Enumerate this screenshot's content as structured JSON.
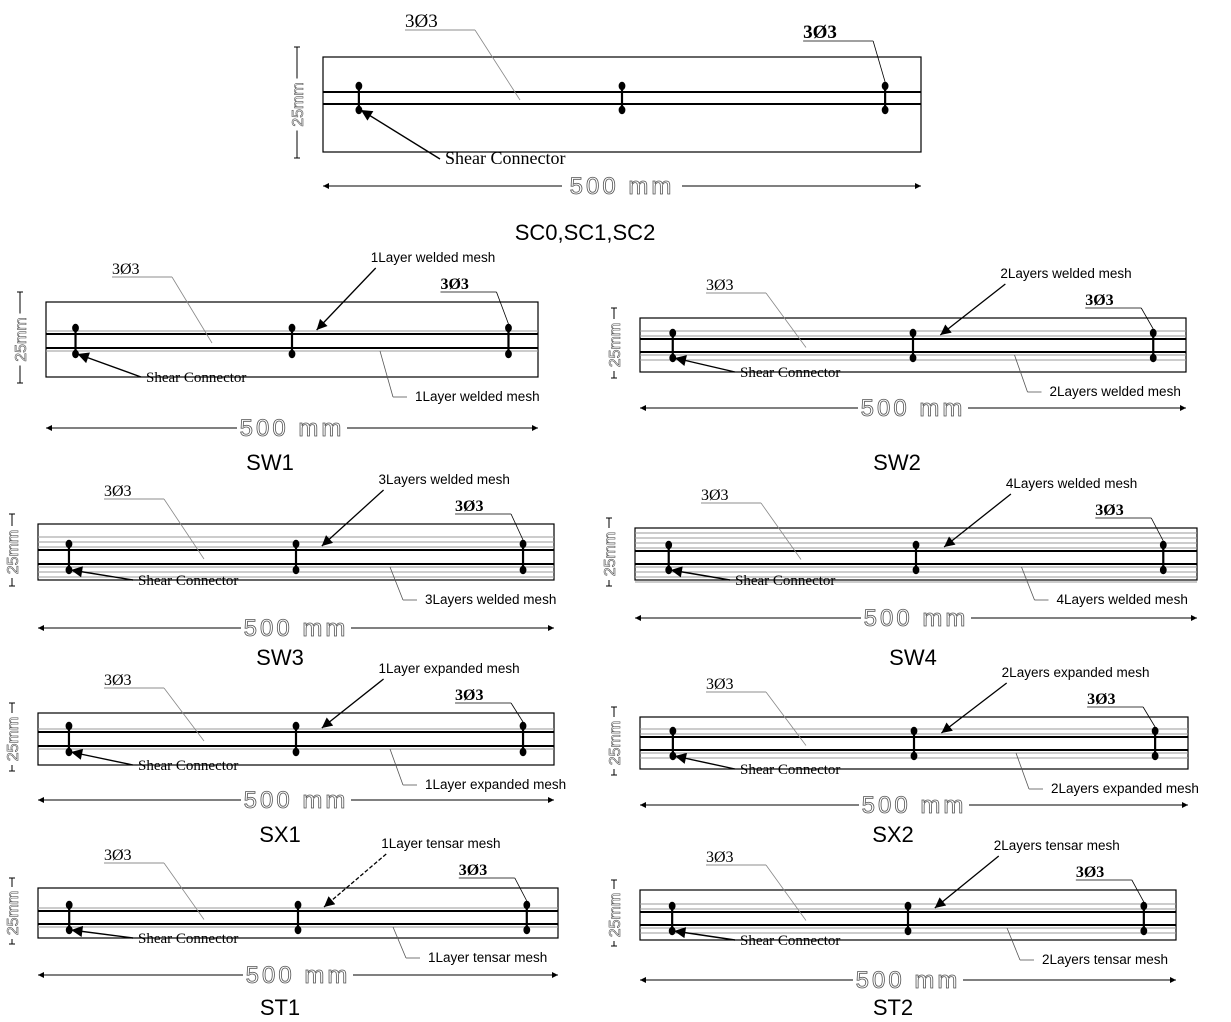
{
  "panels": [
    {
      "id": "sc",
      "caption": "SC0,SC1,SC2",
      "bar_label_left": "3Ø3",
      "bar_label_right": "3Ø3",
      "connector_label": "Shear Connector",
      "length_label": "500  mm",
      "depth_label": "25mm",
      "mesh_top_label": "",
      "mesh_bottom_label": "",
      "mesh_layers": 0,
      "mesh_type": "none"
    },
    {
      "id": "sw1",
      "caption": "SW1",
      "bar_label_left": "3Ø3",
      "bar_label_right": "3Ø3",
      "connector_label": "Shear Connector",
      "length_label": "500  mm",
      "depth_label": "25mm",
      "mesh_top_label": "1Layer welded mesh",
      "mesh_bottom_label": "1Layer welded mesh",
      "mesh_layers": 1,
      "mesh_type": "welded"
    },
    {
      "id": "sw2",
      "caption": "SW2",
      "bar_label_left": "3Ø3",
      "bar_label_right": "3Ø3",
      "connector_label": "Shear Connector",
      "length_label": "500  mm",
      "depth_label": "25mm",
      "mesh_top_label": "2Layers welded mesh",
      "mesh_bottom_label": "2Layers welded mesh",
      "mesh_layers": 2,
      "mesh_type": "welded"
    },
    {
      "id": "sw3",
      "caption": "SW3",
      "bar_label_left": "3Ø3",
      "bar_label_right": "3Ø3",
      "connector_label": "Shear Connector",
      "length_label": "500  mm",
      "depth_label": "25mm",
      "mesh_top_label": "3Layers welded mesh",
      "mesh_bottom_label": "3Layers welded mesh",
      "mesh_layers": 3,
      "mesh_type": "welded"
    },
    {
      "id": "sw4",
      "caption": "SW4",
      "bar_label_left": "3Ø3",
      "bar_label_right": "3Ø3",
      "connector_label": "Shear Connector",
      "length_label": "500  mm",
      "depth_label": "25mm",
      "mesh_top_label": "4Layers welded mesh",
      "mesh_bottom_label": "4Layers welded mesh",
      "mesh_layers": 4,
      "mesh_type": "welded"
    },
    {
      "id": "sx1",
      "caption": "SX1",
      "bar_label_left": "3Ø3",
      "bar_label_right": "3Ø3",
      "connector_label": "Shear Connector",
      "length_label": "500  mm",
      "depth_label": "25mm",
      "mesh_top_label": "1Layer expanded mesh",
      "mesh_bottom_label": "1Layer expanded mesh",
      "mesh_layers": 1,
      "mesh_type": "expanded"
    },
    {
      "id": "sx2",
      "caption": "SX2",
      "bar_label_left": "3Ø3",
      "bar_label_right": "3Ø3",
      "connector_label": "Shear Connector",
      "length_label": "500  mm",
      "depth_label": "25mm",
      "mesh_top_label": "2Layers expanded mesh",
      "mesh_bottom_label": "2Layers expanded mesh",
      "mesh_layers": 2,
      "mesh_type": "expanded"
    },
    {
      "id": "st1",
      "caption": "ST1",
      "bar_label_left": "3Ø3",
      "bar_label_right": "3Ø3",
      "connector_label": "Shear Connector",
      "length_label": "500  mm",
      "depth_label": "25mm",
      "mesh_top_label": "1Layer tensar mesh",
      "mesh_bottom_label": "1Layer tensar mesh",
      "mesh_layers": 1,
      "mesh_type": "tensar"
    },
    {
      "id": "st2",
      "caption": "ST2",
      "bar_label_left": "3Ø3",
      "bar_label_right": "3Ø3",
      "connector_label": "Shear Connector",
      "length_label": "500  mm",
      "depth_label": "25mm",
      "mesh_top_label": "2Layers tensar mesh",
      "mesh_bottom_label": "2Layers tensar mesh",
      "mesh_layers": 2,
      "mesh_type": "tensar"
    }
  ]
}
